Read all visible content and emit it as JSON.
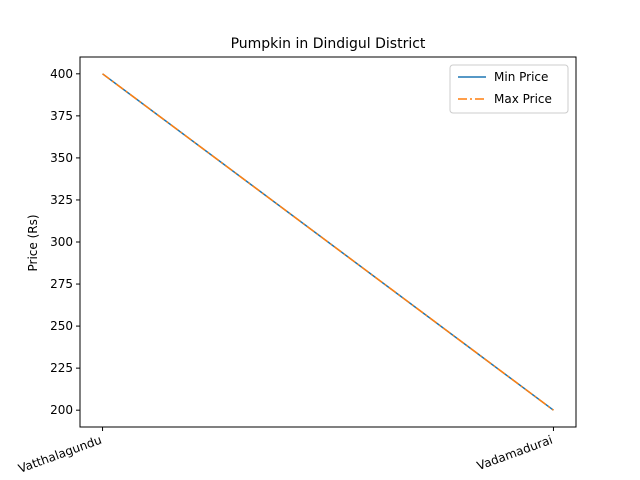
{
  "chart_data": {
    "type": "line",
    "title": "Pumpkin in Dindigul District",
    "xlabel": "",
    "ylabel": "Price (Rs)",
    "categories": [
      "Vatthalagundu",
      "Vadamadurai"
    ],
    "series": [
      {
        "name": "Min Price",
        "values": [
          400,
          200
        ],
        "color": "#1f77b4",
        "style": "solid"
      },
      {
        "name": "Max Price",
        "values": [
          400,
          200
        ],
        "color": "#ff7f0e",
        "style": "dashdot"
      }
    ],
    "ylim": [
      190,
      410
    ],
    "yticks": [
      200,
      225,
      250,
      275,
      300,
      325,
      350,
      375,
      400
    ],
    "grid": false,
    "legend_position": "top-right"
  }
}
